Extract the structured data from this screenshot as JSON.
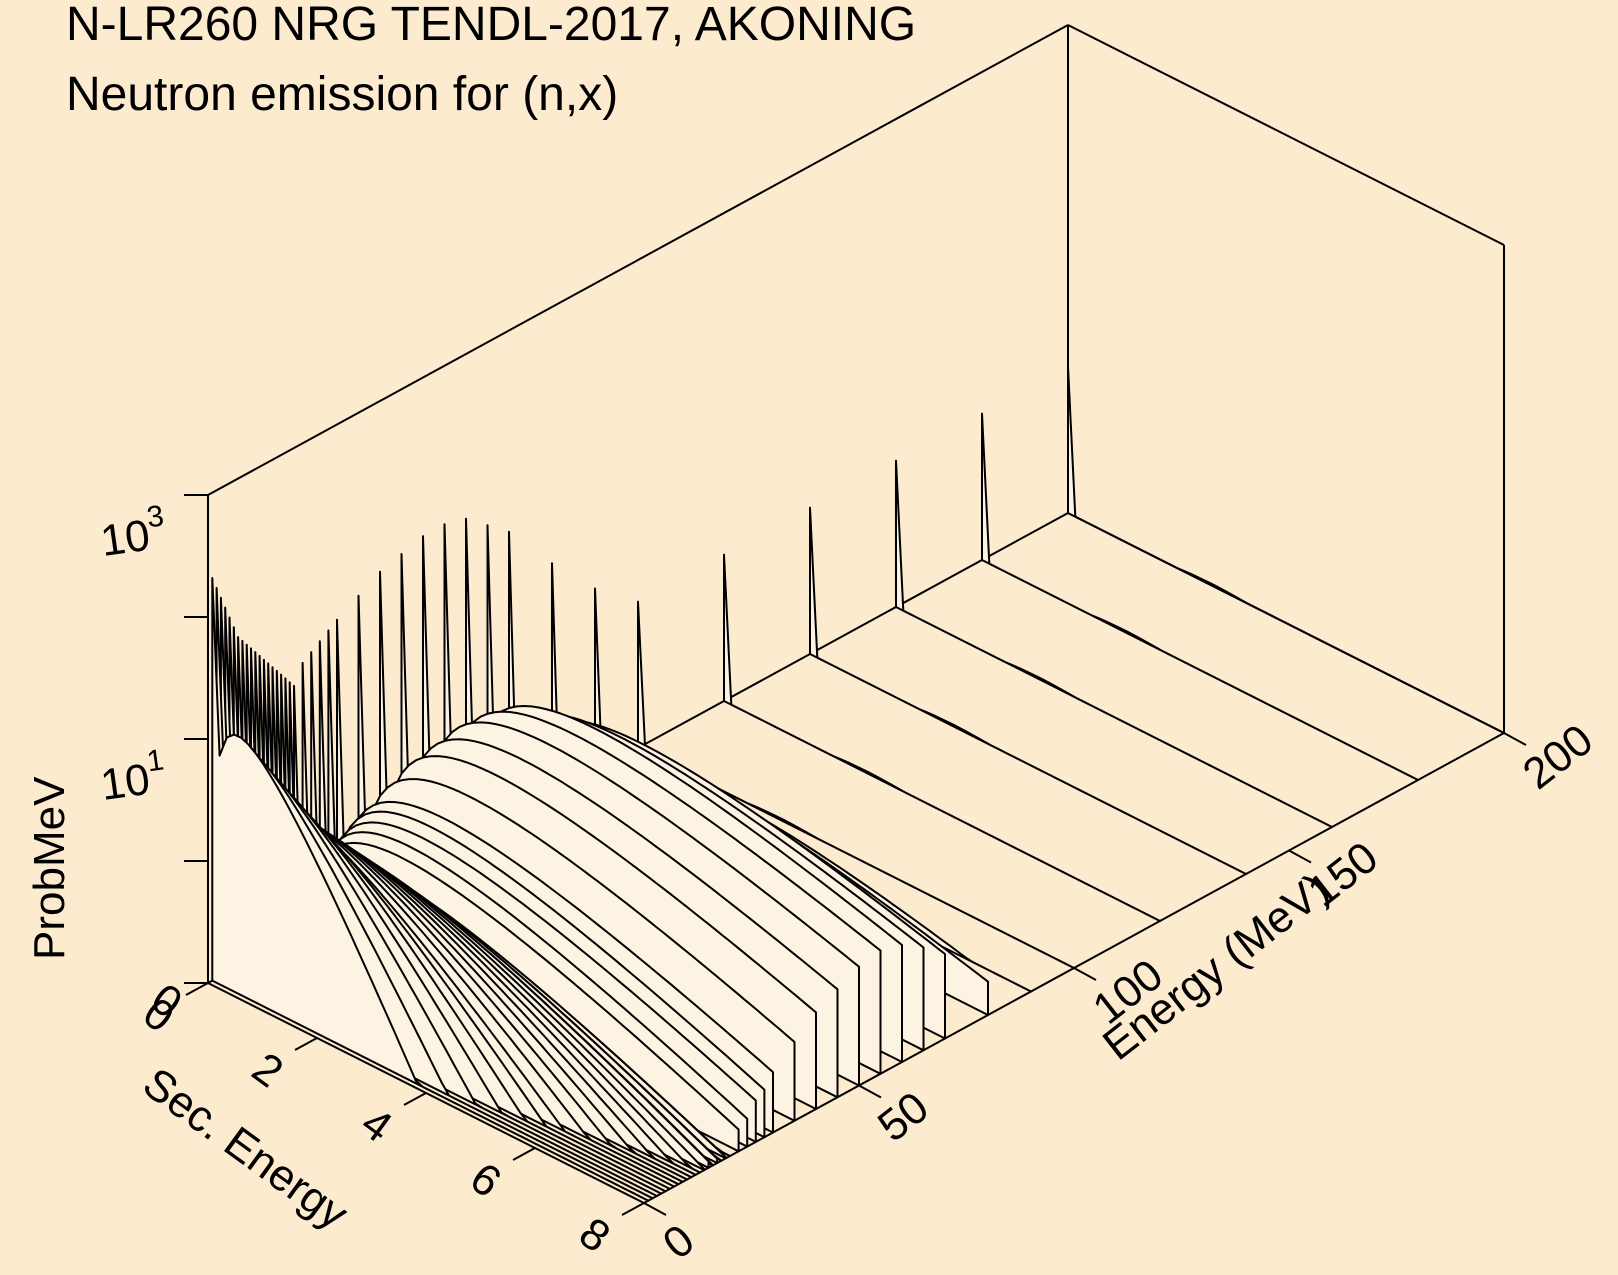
{
  "chart_data": {
    "type": "waterfall-3d",
    "title": "N-LR260 NRG TENDL-2017, AKONING",
    "subtitle": "Neutron emission for (n,x)",
    "xlabel": "Sec. Energy",
    "ylabel": "Energy (MeV)",
    "zlabel": "ProbMeV",
    "x_ticks": [
      "0",
      "2",
      "4",
      "6",
      "8"
    ],
    "y_ticks": [
      "0",
      "50",
      "100",
      "150",
      "200"
    ],
    "z_ticks": [
      {
        "base": "10",
        "exp": "1"
      },
      {
        "base": "10",
        "exp": "3"
      }
    ],
    "xlim": [
      0,
      8
    ],
    "ylim": [
      0,
      200
    ],
    "zlim_log10": [
      -1,
      3
    ],
    "z_scale": "log",
    "background": "#fdebd0",
    "line_color": "#000000",
    "fill_color": "#fdf3e3",
    "series": [
      {
        "incident_energy": 1,
        "peak_x": 0.6,
        "peak_log": 1.1
      },
      {
        "incident_energy": 2,
        "peak_x": 0.7,
        "peak_log": 1.0
      },
      {
        "incident_energy": 3,
        "peak_x": 0.8,
        "peak_log": 0.9
      },
      {
        "incident_energy": 4,
        "peak_x": 0.9,
        "peak_log": 0.8
      },
      {
        "incident_energy": 5,
        "peak_x": 1.0,
        "peak_log": 0.7
      },
      {
        "incident_energy": 6,
        "peak_x": 1.1,
        "peak_log": 0.6
      },
      {
        "incident_energy": 7,
        "peak_x": 1.2,
        "peak_log": 0.5
      },
      {
        "incident_energy": 8,
        "peak_x": 1.3,
        "peak_log": 0.45
      },
      {
        "incident_energy": 9,
        "peak_x": 1.4,
        "peak_log": 0.4
      },
      {
        "incident_energy": 10,
        "peak_x": 1.5,
        "peak_log": 0.35
      },
      {
        "incident_energy": 11,
        "peak_x": 1.6,
        "peak_log": 0.3
      },
      {
        "incident_energy": 12,
        "peak_x": 1.7,
        "peak_log": 0.25
      },
      {
        "incident_energy": 13,
        "peak_x": 1.8,
        "peak_log": 0.2
      },
      {
        "incident_energy": 14,
        "peak_x": 1.9,
        "peak_log": 0.15
      },
      {
        "incident_energy": 15,
        "peak_x": 2.0,
        "peak_log": 0.1
      },
      {
        "incident_energy": 16,
        "peak_x": 2.0,
        "peak_log": 0.05
      },
      {
        "incident_energy": 17,
        "peak_x": 2.1,
        "peak_log": 0.0
      },
      {
        "incident_energy": 18,
        "peak_x": 2.1,
        "peak_log": -0.05
      },
      {
        "incident_energy": 19,
        "peak_x": 2.2,
        "peak_log": -0.1
      },
      {
        "incident_energy": 20,
        "peak_x": 2.2,
        "peak_log": -0.15
      },
      {
        "incident_energy": 22,
        "peak_x": 2.3,
        "peak_log": 0.0
      },
      {
        "incident_energy": 24,
        "peak_x": 2.3,
        "peak_log": 0.05
      },
      {
        "incident_energy": 26,
        "peak_x": 2.4,
        "peak_log": 0.1
      },
      {
        "incident_energy": 28,
        "peak_x": 2.4,
        "peak_log": 0.15
      },
      {
        "incident_energy": 30,
        "peak_x": 2.5,
        "peak_log": 0.2
      },
      {
        "incident_energy": 35,
        "peak_x": 2.6,
        "peak_log": 0.3
      },
      {
        "incident_energy": 40,
        "peak_x": 2.7,
        "peak_log": 0.4
      },
      {
        "incident_energy": 45,
        "peak_x": 2.8,
        "peak_log": 0.45
      },
      {
        "incident_energy": 50,
        "peak_x": 2.9,
        "peak_log": 0.5
      },
      {
        "incident_energy": 55,
        "peak_x": 3.0,
        "peak_log": 0.5
      },
      {
        "incident_energy": 60,
        "peak_x": 3.0,
        "peak_log": 0.45
      },
      {
        "incident_energy": 65,
        "peak_x": 3.1,
        "peak_log": 0.3
      },
      {
        "incident_energy": 70,
        "peak_x": 3.1,
        "peak_log": 0.15
      },
      {
        "incident_energy": 80,
        "peak_x": 3.2,
        "peak_log": -0.3
      },
      {
        "incident_energy": 90,
        "peak_x": 3.2,
        "peak_log": -0.7
      },
      {
        "incident_energy": 100,
        "peak_x": 3.3,
        "peak_log": -1.0
      },
      {
        "incident_energy": 120,
        "peak_x": 3.3,
        "peak_log": -1.0
      },
      {
        "incident_energy": 140,
        "peak_x": 3.3,
        "peak_log": -1.0
      },
      {
        "incident_energy": 160,
        "peak_x": 3.3,
        "peak_log": -1.0
      },
      {
        "incident_energy": 180,
        "peak_x": 3.3,
        "peak_log": -1.0
      },
      {
        "incident_energy": 200,
        "peak_x": 3.3,
        "peak_log": -1.0
      }
    ]
  }
}
